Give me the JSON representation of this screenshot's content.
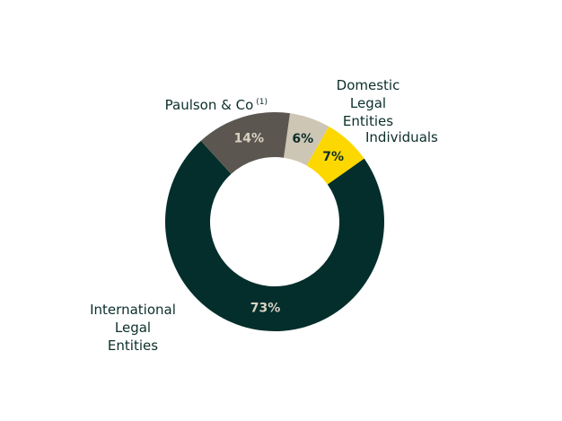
{
  "chart_data": {
    "type": "donut",
    "categories": [
      "Domestic Legal Entities",
      "Individuals",
      "International Legal Entities",
      "Paulson & Co"
    ],
    "values": [
      6,
      7,
      73,
      14
    ],
    "value_labels": [
      "6%",
      "7%",
      "73%",
      "14%"
    ],
    "colors": [
      "#cdc6b4",
      "#fcd800",
      "#032e2b",
      "#5b5750"
    ],
    "footnote": "(1)"
  }
}
